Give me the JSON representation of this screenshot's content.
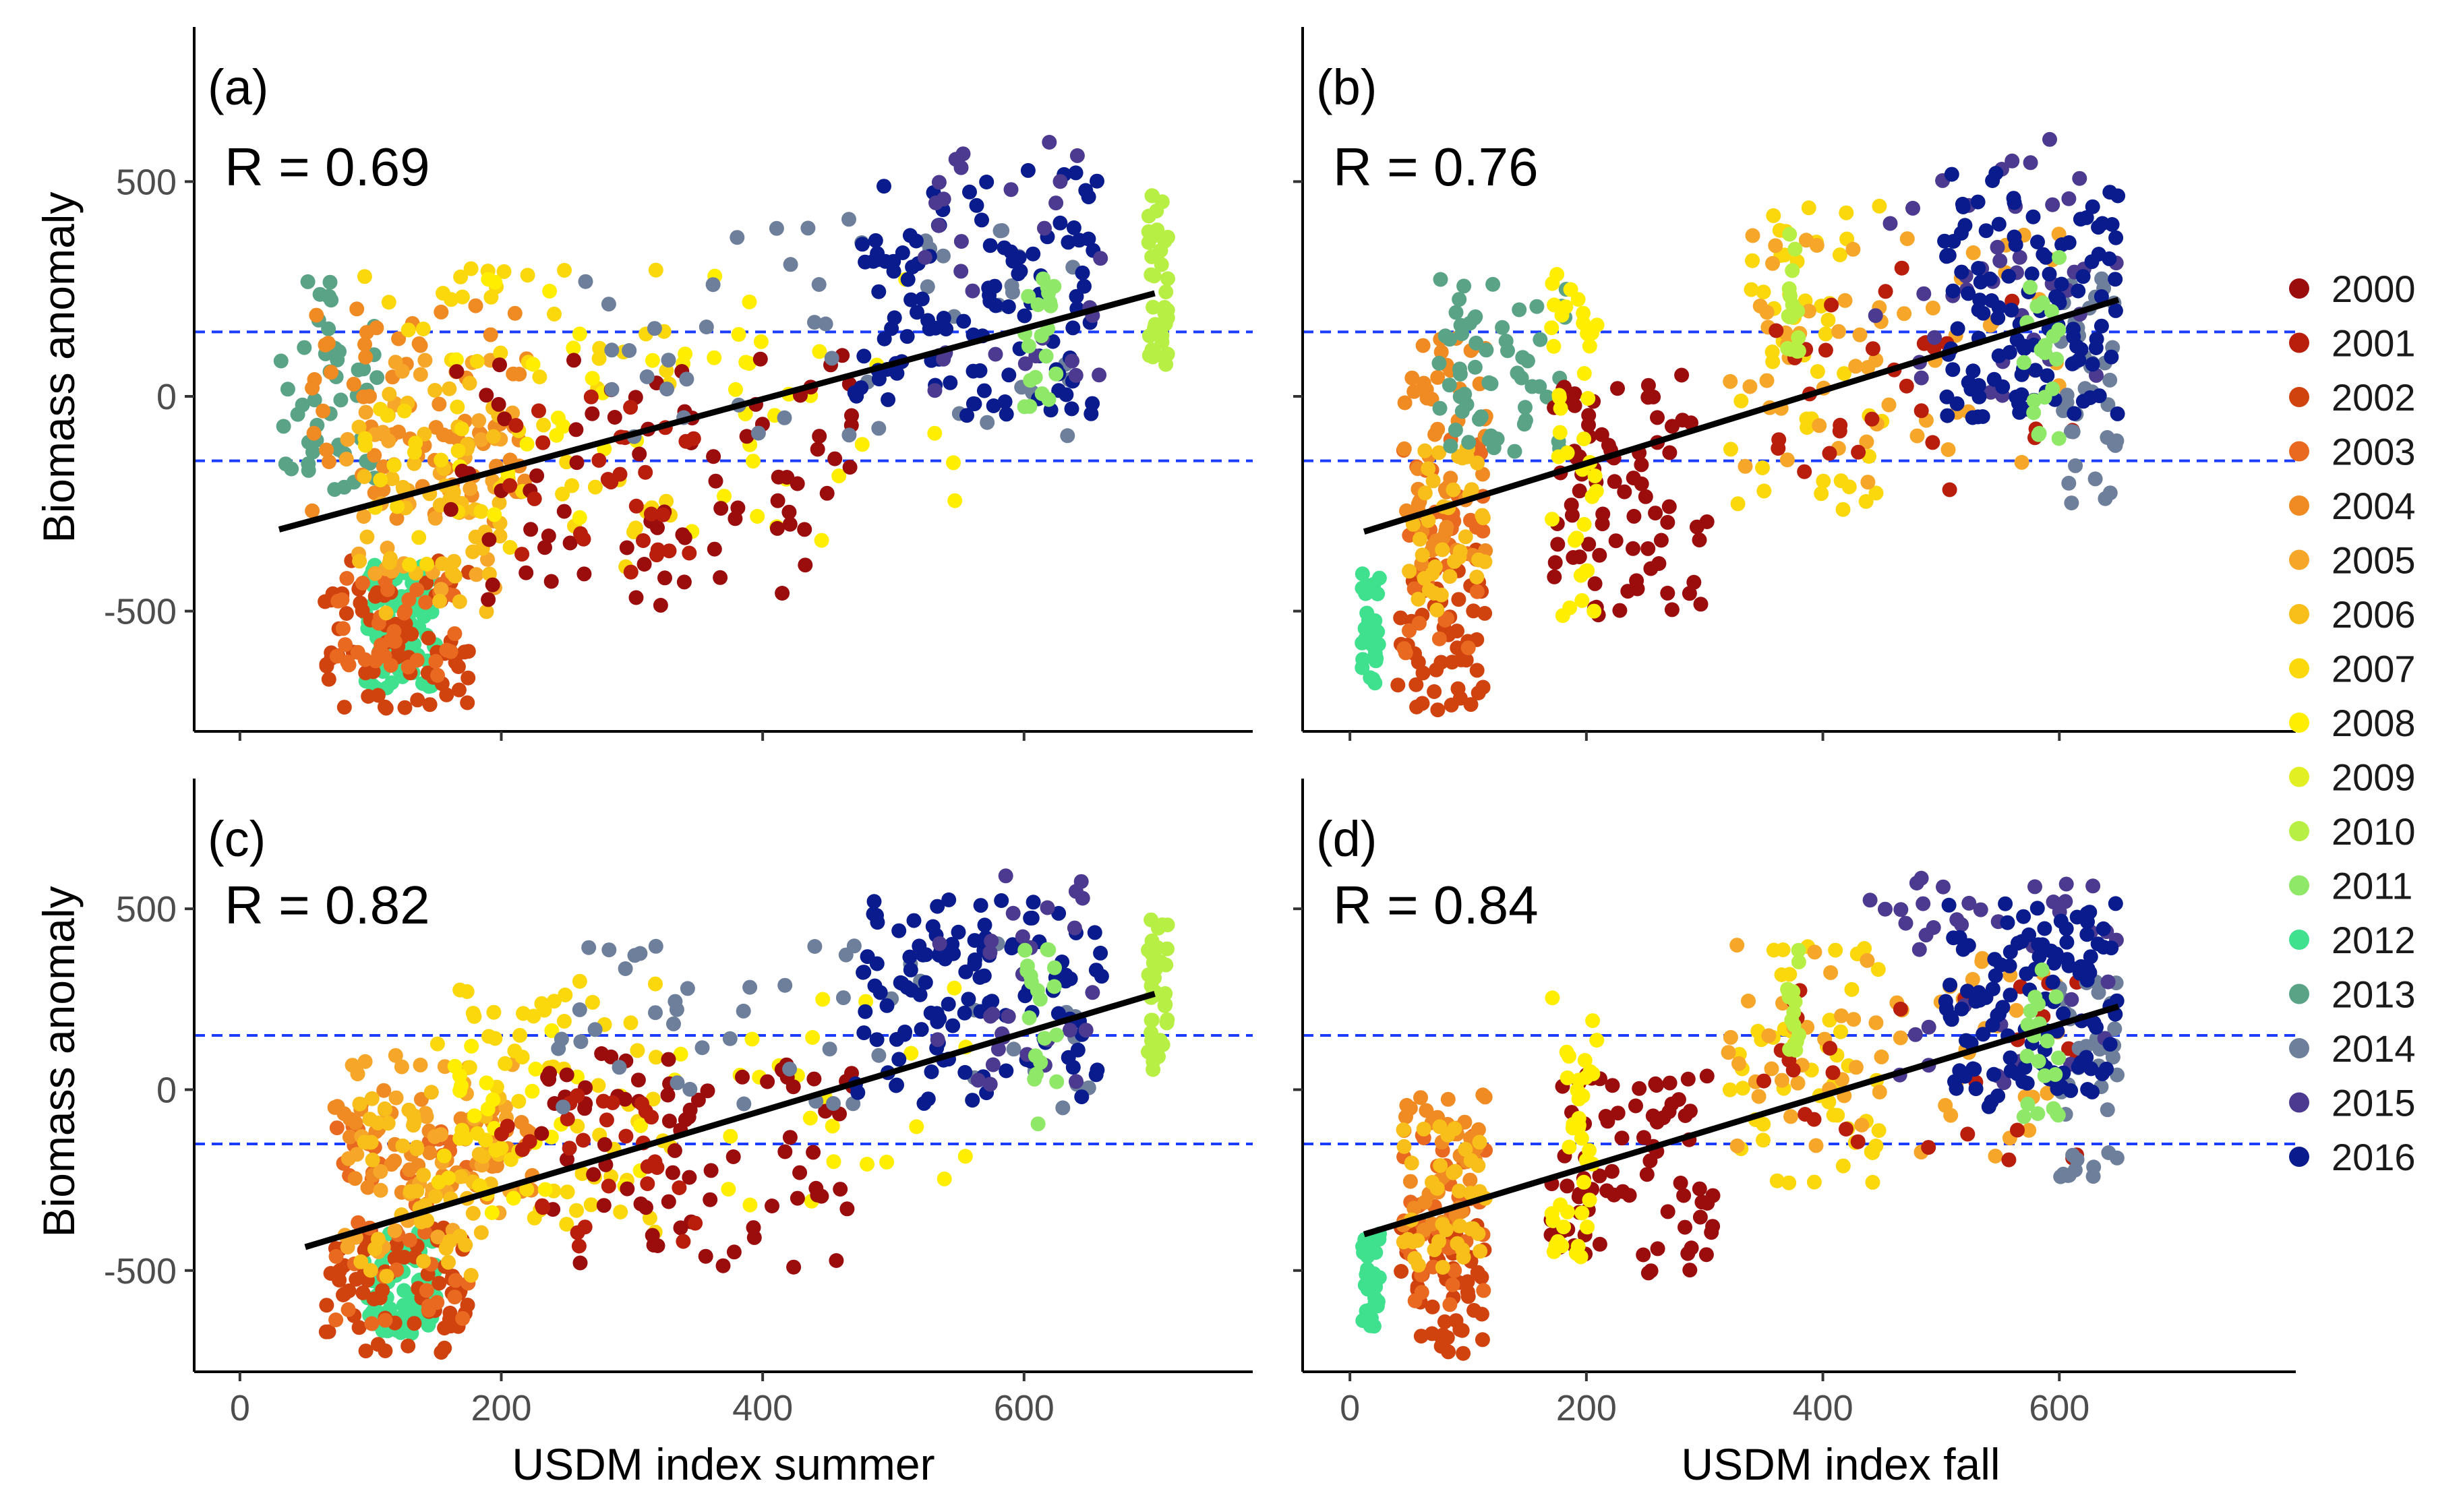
{
  "chart_data": {
    "type": "scatter",
    "layout": "2x2 faceted scatter plots with linear fit lines and shared year legend",
    "years": [
      "2000",
      "2001",
      "2002",
      "2003",
      "2004",
      "2005",
      "2006",
      "2007",
      "2008",
      "2009",
      "2010",
      "2011",
      "2012",
      "2013",
      "2014",
      "2015",
      "2016"
    ],
    "year_colors": [
      "#9b0d0d",
      "#b91d0c",
      "#d0430f",
      "#e8691f",
      "#f08b23",
      "#f6a628",
      "#f8be1a",
      "#fbd80c",
      "#ffee00",
      "#e2ef22",
      "#b8ef44",
      "#8fe867",
      "#3fe08e",
      "#5aa386",
      "#6d7f9a",
      "#4b3a8f",
      "#0a1c8d"
    ],
    "legend_marker_color": "#b00000",
    "fit_line_color": "#000000",
    "reference_line_color": "#1a3cff",
    "reference_lines_y": [
      150,
      -150
    ],
    "ylabel": "Biomass anomaly",
    "y_ticks": [
      "500",
      "0",
      "-500"
    ],
    "y_tick_values": [
      500,
      0,
      -500
    ],
    "ylim": [
      -780,
      860
    ],
    "x_ticks": [
      "0",
      "200",
      "400",
      "600"
    ],
    "x_tick_values": [
      0,
      200,
      400,
      600
    ],
    "panels": [
      {
        "label": "(a)",
        "r_text": "R = 0.69",
        "xaxis": "summer",
        "xlim": [
          -35,
          775
        ],
        "fit_line": {
          "x": [
            30,
            700
          ],
          "y": [
            -310,
            240
          ]
        },
        "clusters": [
          {
            "year": "2013",
            "x": [
              25,
              105
            ],
            "y": [
              -220,
              280
            ],
            "n": 50
          },
          {
            "year": "2012",
            "x": [
              95,
              150
            ],
            "y": [
              -680,
              -390
            ],
            "n": 90
          },
          {
            "year": "2002",
            "x": [
              65,
              175
            ],
            "y": [
              -730,
              -380
            ],
            "n": 70
          },
          {
            "year": "2003",
            "x": [
              70,
              170
            ],
            "y": [
              -650,
              -420
            ],
            "n": 40
          },
          {
            "year": "2004",
            "x": [
              55,
              220
            ],
            "y": [
              -300,
              220
            ],
            "n": 80
          },
          {
            "year": "2005",
            "x": [
              80,
              210
            ],
            "y": [
              -450,
              100
            ],
            "n": 50
          },
          {
            "year": "2006",
            "x": [
              90,
              200
            ],
            "y": [
              -520,
              50
            ],
            "n": 50
          },
          {
            "year": "2007",
            "x": [
              90,
              330
            ],
            "y": [
              -400,
              300
            ],
            "n": 70
          },
          {
            "year": "2008",
            "x": [
              160,
              560
            ],
            "y": [
              -350,
              300
            ],
            "n": 50
          },
          {
            "year": "2000",
            "x": [
              160,
              470
            ],
            "y": [
              -500,
              100
            ],
            "n": 80
          },
          {
            "year": "2001",
            "x": [
              200,
              350
            ],
            "y": [
              -450,
              0
            ],
            "n": 30
          },
          {
            "year": "2014",
            "x": [
              230,
              650
            ],
            "y": [
              -100,
              420
            ],
            "n": 50
          },
          {
            "year": "2016",
            "x": [
              470,
              660
            ],
            "y": [
              -50,
              530
            ],
            "n": 120
          },
          {
            "year": "2015",
            "x": [
              520,
              660
            ],
            "y": [
              0,
              600
            ],
            "n": 30
          },
          {
            "year": "2010",
            "x": [
              695,
              710
            ],
            "y": [
              50,
              470
            ],
            "n": 40
          },
          {
            "year": "2011",
            "x": [
              600,
              625
            ],
            "y": [
              -100,
              400
            ],
            "n": 20
          }
        ]
      },
      {
        "label": "(b)",
        "r_text": "R = 0.76",
        "xaxis": "fall",
        "xlim": [
          -40,
          800
        ],
        "fit_line": {
          "x": [
            12,
            650
          ],
          "y": [
            -315,
            225
          ]
        },
        "clusters": [
          {
            "year": "2012",
            "x": [
              10,
              25
            ],
            "y": [
              -680,
              -390
            ],
            "n": 30
          },
          {
            "year": "2002",
            "x": [
              40,
              115
            ],
            "y": [
              -730,
              -350
            ],
            "n": 50
          },
          {
            "year": "2003",
            "x": [
              45,
              115
            ],
            "y": [
              -600,
              -100
            ],
            "n": 40
          },
          {
            "year": "2004",
            "x": [
              45,
              115
            ],
            "y": [
              -400,
              150
            ],
            "n": 50
          },
          {
            "year": "2006",
            "x": [
              45,
              115
            ],
            "y": [
              -500,
              -100
            ],
            "n": 40
          },
          {
            "year": "2013",
            "x": [
              75,
              185
            ],
            "y": [
              -150,
              280
            ],
            "n": 60
          },
          {
            "year": "2000",
            "x": [
              170,
              310
            ],
            "y": [
              -510,
              50
            ],
            "n": 80
          },
          {
            "year": "2008",
            "x": [
              170,
              210
            ],
            "y": [
              -520,
              300
            ],
            "n": 40
          },
          {
            "year": "2007",
            "x": [
              320,
              450
            ],
            "y": [
              -270,
              450
            ],
            "n": 50
          },
          {
            "year": "2005",
            "x": [
              320,
              600
            ],
            "y": [
              -200,
              400
            ],
            "n": 60
          },
          {
            "year": "2001",
            "x": [
              350,
              620
            ],
            "y": [
              -220,
              300
            ],
            "n": 30
          },
          {
            "year": "2010",
            "x": [
              370,
              380
            ],
            "y": [
              100,
              400
            ],
            "n": 15
          },
          {
            "year": "2014",
            "x": [
              600,
              650
            ],
            "y": [
              -250,
              300
            ],
            "n": 40
          },
          {
            "year": "2015",
            "x": [
              430,
              650
            ],
            "y": [
              0,
              600
            ],
            "n": 40
          },
          {
            "year": "2016",
            "x": [
              500,
              650
            ],
            "y": [
              -50,
              520
            ],
            "n": 120
          },
          {
            "year": "2011",
            "x": [
              570,
              600
            ],
            "y": [
              -100,
              350
            ],
            "n": 20
          }
        ]
      },
      {
        "label": "(c)",
        "r_text": "R = 0.82",
        "xaxis": "summer",
        "xlim": [
          -35,
          775
        ],
        "fit_line": {
          "x": [
            50,
            700
          ],
          "y": [
            -435,
            265
          ]
        },
        "clusters": [
          {
            "year": "2012",
            "x": [
              95,
              150
            ],
            "y": [
              -680,
              -390
            ],
            "n": 90
          },
          {
            "year": "2002",
            "x": [
              65,
              175
            ],
            "y": [
              -730,
              -380
            ],
            "n": 70
          },
          {
            "year": "2003",
            "x": [
              70,
              180
            ],
            "y": [
              -650,
              -80
            ],
            "n": 50
          },
          {
            "year": "2004",
            "x": [
              70,
              230
            ],
            "y": [
              -300,
              0
            ],
            "n": 60
          },
          {
            "year": "2005",
            "x": [
              80,
              210
            ],
            "y": [
              -450,
              100
            ],
            "n": 50
          },
          {
            "year": "2006",
            "x": [
              90,
              200
            ],
            "y": [
              -520,
              0
            ],
            "n": 50
          },
          {
            "year": "2007",
            "x": [
              150,
              330
            ],
            "y": [
              -400,
              300
            ],
            "n": 70
          },
          {
            "year": "2008",
            "x": [
              160,
              560
            ],
            "y": [
              -350,
              300
            ],
            "n": 50
          },
          {
            "year": "2000",
            "x": [
              230,
              470
            ],
            "y": [
              -500,
              100
            ],
            "n": 80
          },
          {
            "year": "2001",
            "x": [
              200,
              350
            ],
            "y": [
              -450,
              0
            ],
            "n": 30
          },
          {
            "year": "2014",
            "x": [
              230,
              650
            ],
            "y": [
              -100,
              420
            ],
            "n": 50
          },
          {
            "year": "2016",
            "x": [
              470,
              660
            ],
            "y": [
              -50,
              530
            ],
            "n": 120
          },
          {
            "year": "2015",
            "x": [
              520,
              660
            ],
            "y": [
              0,
              600
            ],
            "n": 30
          },
          {
            "year": "2010",
            "x": [
              695,
              710
            ],
            "y": [
              50,
              470
            ],
            "n": 40
          },
          {
            "year": "2011",
            "x": [
              600,
              625
            ],
            "y": [
              -100,
              400
            ],
            "n": 20
          }
        ]
      },
      {
        "label": "(d)",
        "r_text": "R = 0.84",
        "xaxis": "fall",
        "xlim": [
          -40,
          800
        ],
        "fit_line": {
          "x": [
            12,
            650
          ],
          "y": [
            -400,
            230
          ]
        },
        "clusters": [
          {
            "year": "2012",
            "x": [
              10,
              25
            ],
            "y": [
              -680,
              -390
            ],
            "n": 30
          },
          {
            "year": "2002",
            "x": [
              40,
              115
            ],
            "y": [
              -730,
              -350
            ],
            "n": 50
          },
          {
            "year": "2003",
            "x": [
              45,
              115
            ],
            "y": [
              -600,
              -100
            ],
            "n": 40
          },
          {
            "year": "2004",
            "x": [
              45,
              115
            ],
            "y": [
              -400,
              0
            ],
            "n": 40
          },
          {
            "year": "2006",
            "x": [
              45,
              115
            ],
            "y": [
              -500,
              -100
            ],
            "n": 40
          },
          {
            "year": "2000",
            "x": [
              170,
              310
            ],
            "y": [
              -510,
              50
            ],
            "n": 80
          },
          {
            "year": "2008",
            "x": [
              170,
              210
            ],
            "y": [
              -520,
              300
            ],
            "n": 40
          },
          {
            "year": "2007",
            "x": [
              320,
              450
            ],
            "y": [
              -270,
              450
            ],
            "n": 50
          },
          {
            "year": "2005",
            "x": [
              320,
              600
            ],
            "y": [
              -200,
              400
            ],
            "n": 60
          },
          {
            "year": "2001",
            "x": [
              350,
              620
            ],
            "y": [
              -220,
              300
            ],
            "n": 30
          },
          {
            "year": "2010",
            "x": [
              370,
              380
            ],
            "y": [
              100,
              400
            ],
            "n": 15
          },
          {
            "year": "2014",
            "x": [
              600,
              650
            ],
            "y": [
              -250,
              300
            ],
            "n": 40
          },
          {
            "year": "2015",
            "x": [
              430,
              650
            ],
            "y": [
              0,
              600
            ],
            "n": 40
          },
          {
            "year": "2016",
            "x": [
              500,
              650
            ],
            "y": [
              -50,
              520
            ],
            "n": 120
          },
          {
            "year": "2011",
            "x": [
              570,
              600
            ],
            "y": [
              -100,
              350
            ],
            "n": 20
          }
        ]
      }
    ],
    "x_axis_titles": {
      "summer": "USDM index summer",
      "fall": "USDM index fall"
    }
  }
}
